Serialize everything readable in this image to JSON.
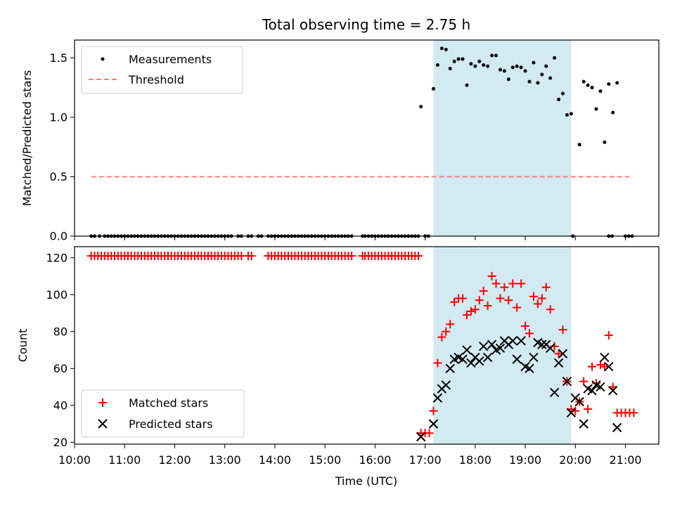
{
  "chart_data": [
    {
      "type": "scatter",
      "title": "Total observing time = 2.75 h",
      "ylabel": "Matched/Predicted stars",
      "xlabel": "",
      "xlim": [
        "10:00",
        "21:40"
      ],
      "ylim": [
        0,
        1.65
      ],
      "yticks": [
        "0.0",
        "0.5",
        "1.0",
        "1.5"
      ],
      "grid": false,
      "legend": "top-left",
      "shaded_interval": {
        "start": "17:10",
        "end": "19:55",
        "color": "#add8e6"
      },
      "series": [
        {
          "name": "Measurements",
          "color": "#000000",
          "marker": "dot",
          "x_zero": [
            "10:20",
            "10:24",
            "10:30",
            "10:36",
            "10:40",
            "10:44",
            "10:48",
            "10:52",
            "10:56",
            "11:00",
            "11:04",
            "11:08",
            "11:12",
            "11:16",
            "11:20",
            "11:24",
            "11:28",
            "11:32",
            "11:36",
            "11:40",
            "11:44",
            "11:48",
            "11:52",
            "11:56",
            "12:00",
            "12:04",
            "12:08",
            "12:12",
            "12:16",
            "12:20",
            "12:24",
            "12:28",
            "12:32",
            "12:36",
            "12:40",
            "12:44",
            "12:48",
            "12:52",
            "12:56",
            "13:00",
            "13:04",
            "13:08",
            "13:16",
            "13:20",
            "13:28",
            "13:32",
            "13:40",
            "13:44",
            "13:52",
            "13:56",
            "14:00",
            "14:04",
            "14:08",
            "14:12",
            "14:16",
            "14:20",
            "14:24",
            "14:28",
            "14:32",
            "14:36",
            "14:40",
            "14:44",
            "14:48",
            "14:52",
            "14:56",
            "15:00",
            "15:04",
            "15:08",
            "15:12",
            "15:16",
            "15:20",
            "15:24",
            "15:28",
            "15:32",
            "15:45",
            "15:48",
            "15:52",
            "15:56",
            "16:00",
            "16:04",
            "16:08",
            "16:12",
            "16:16",
            "16:20",
            "16:24",
            "16:28",
            "16:32",
            "16:36",
            "16:40",
            "16:44",
            "16:48",
            "16:52",
            "17:00",
            "17:04",
            "19:57",
            "20:40",
            "20:44",
            "21:00",
            "21:04",
            "21:08"
          ],
          "points": [
            [
              "16:55",
              1.09
            ],
            [
              "17:10",
              1.24
            ],
            [
              "17:15",
              1.44
            ],
            [
              "17:20",
              1.58
            ],
            [
              "17:25",
              1.57
            ],
            [
              "17:30",
              1.41
            ],
            [
              "17:35",
              1.47
            ],
            [
              "17:40",
              1.49
            ],
            [
              "17:45",
              1.49
            ],
            [
              "17:50",
              1.27
            ],
            [
              "17:55",
              1.45
            ],
            [
              "18:00",
              1.43
            ],
            [
              "18:05",
              1.47
            ],
            [
              "18:10",
              1.44
            ],
            [
              "18:15",
              1.43
            ],
            [
              "18:20",
              1.52
            ],
            [
              "18:25",
              1.52
            ],
            [
              "18:30",
              1.4
            ],
            [
              "18:35",
              1.39
            ],
            [
              "18:40",
              1.32
            ],
            [
              "18:45",
              1.42
            ],
            [
              "18:50",
              1.43
            ],
            [
              "18:55",
              1.42
            ],
            [
              "19:00",
              1.39
            ],
            [
              "19:05",
              1.3
            ],
            [
              "19:10",
              1.46
            ],
            [
              "19:15",
              1.29
            ],
            [
              "19:20",
              1.36
            ],
            [
              "19:25",
              1.43
            ],
            [
              "19:30",
              1.33
            ],
            [
              "19:35",
              1.5
            ],
            [
              "19:40",
              1.15
            ],
            [
              "19:45",
              1.2
            ],
            [
              "19:50",
              1.02
            ],
            [
              "19:55",
              1.03
            ],
            [
              "20:05",
              0.77
            ],
            [
              "20:10",
              1.3
            ],
            [
              "20:15",
              1.27
            ],
            [
              "20:20",
              1.25
            ],
            [
              "20:25",
              1.07
            ],
            [
              "20:30",
              1.22
            ],
            [
              "20:35",
              0.79
            ],
            [
              "20:40",
              1.28
            ],
            [
              "20:45",
              1.04
            ],
            [
              "20:50",
              1.29
            ]
          ]
        },
        {
          "name": "Threshold",
          "color": "#ff7f7f",
          "style": "dashed",
          "y": 0.5,
          "x": [
            "10:20",
            "21:05"
          ]
        }
      ]
    },
    {
      "type": "scatter",
      "title": "",
      "ylabel": "Count",
      "xlabel": "Time (UTC)",
      "xlim": [
        "10:00",
        "21:40"
      ],
      "ylim": [
        19,
        126
      ],
      "yticks": [
        "20",
        "40",
        "60",
        "80",
        "100",
        "120"
      ],
      "xticks": [
        "10:00",
        "11:00",
        "12:00",
        "13:00",
        "14:00",
        "15:00",
        "16:00",
        "17:00",
        "18:00",
        "19:00",
        "20:00",
        "21:00"
      ],
      "grid": false,
      "legend": "bottom-left",
      "shaded_interval": {
        "start": "17:10",
        "end": "19:55",
        "color": "#add8e6"
      },
      "series": [
        {
          "name": "Matched stars",
          "color": "#ff0000",
          "marker": "plus",
          "flat_value": 121,
          "flat_x": [
            "10:20",
            "10:24",
            "10:28",
            "10:32",
            "10:36",
            "10:40",
            "10:44",
            "10:48",
            "10:52",
            "10:56",
            "11:00",
            "11:04",
            "11:08",
            "11:12",
            "11:16",
            "11:20",
            "11:24",
            "11:28",
            "11:32",
            "11:36",
            "11:40",
            "11:44",
            "11:48",
            "11:52",
            "11:56",
            "12:00",
            "12:04",
            "12:08",
            "12:12",
            "12:16",
            "12:20",
            "12:24",
            "12:28",
            "12:32",
            "12:36",
            "12:40",
            "12:44",
            "12:48",
            "12:52",
            "12:56",
            "13:00",
            "13:04",
            "13:08",
            "13:12",
            "13:16",
            "13:20",
            "13:28",
            "13:32",
            "13:52",
            "13:56",
            "14:00",
            "14:04",
            "14:08",
            "14:12",
            "14:16",
            "14:20",
            "14:24",
            "14:28",
            "14:32",
            "14:36",
            "14:40",
            "14:44",
            "14:48",
            "14:52",
            "14:56",
            "15:00",
            "15:04",
            "15:08",
            "15:12",
            "15:16",
            "15:20",
            "15:24",
            "15:28",
            "15:32",
            "15:45",
            "15:48",
            "15:52",
            "15:56",
            "16:00",
            "16:04",
            "16:08",
            "16:12",
            "16:16",
            "16:20",
            "16:24",
            "16:28",
            "16:32",
            "16:36",
            "16:40",
            "16:44",
            "16:48",
            "16:52"
          ],
          "points": [
            [
              "16:55",
              25
            ],
            [
              "17:00",
              25
            ],
            [
              "17:05",
              25
            ],
            [
              "17:10",
              37
            ],
            [
              "17:15",
              63
            ],
            [
              "17:20",
              77
            ],
            [
              "17:25",
              80
            ],
            [
              "17:30",
              84
            ],
            [
              "17:35",
              96
            ],
            [
              "17:40",
              98
            ],
            [
              "17:45",
              98
            ],
            [
              "17:50",
              89
            ],
            [
              "17:55",
              91
            ],
            [
              "18:00",
              92
            ],
            [
              "18:05",
              97
            ],
            [
              "18:10",
              102
            ],
            [
              "18:15",
              94
            ],
            [
              "18:20",
              110
            ],
            [
              "18:25",
              106
            ],
            [
              "18:30",
              98
            ],
            [
              "18:35",
              104
            ],
            [
              "18:40",
              97
            ],
            [
              "18:45",
              106
            ],
            [
              "18:50",
              93
            ],
            [
              "18:55",
              106
            ],
            [
              "19:00",
              83
            ],
            [
              "19:05",
              79
            ],
            [
              "19:10",
              99
            ],
            [
              "19:15",
              95
            ],
            [
              "19:20",
              98
            ],
            [
              "19:25",
              104
            ],
            [
              "19:30",
              92
            ],
            [
              "19:35",
              72
            ],
            [
              "19:40",
              68
            ],
            [
              "19:45",
              81
            ],
            [
              "19:50",
              53
            ],
            [
              "19:55",
              38
            ],
            [
              "20:00",
              37
            ],
            [
              "20:05",
              42
            ],
            [
              "20:10",
              53
            ],
            [
              "20:15",
              38
            ],
            [
              "20:20",
              61
            ],
            [
              "20:25",
              52
            ],
            [
              "20:30",
              62
            ],
            [
              "20:35",
              61
            ],
            [
              "20:40",
              78
            ],
            [
              "20:45",
              50
            ],
            [
              "20:50",
              36
            ],
            [
              "20:55",
              36
            ],
            [
              "21:00",
              36
            ],
            [
              "21:05",
              36
            ],
            [
              "21:10",
              36
            ]
          ]
        },
        {
          "name": "Predicted stars",
          "color": "#000000",
          "marker": "x",
          "points": [
            [
              "16:55",
              23
            ],
            [
              "17:10",
              30
            ],
            [
              "17:15",
              44
            ],
            [
              "17:20",
              49
            ],
            [
              "17:25",
              51
            ],
            [
              "17:30",
              60
            ],
            [
              "17:35",
              65
            ],
            [
              "17:40",
              66
            ],
            [
              "17:45",
              65
            ],
            [
              "17:50",
              70
            ],
            [
              "17:55",
              63
            ],
            [
              "18:00",
              66
            ],
            [
              "18:05",
              64
            ],
            [
              "18:10",
              72
            ],
            [
              "18:15",
              66
            ],
            [
              "18:20",
              73
            ],
            [
              "18:25",
              70
            ],
            [
              "18:30",
              71
            ],
            [
              "18:35",
              75
            ],
            [
              "18:40",
              73
            ],
            [
              "18:45",
              75
            ],
            [
              "18:50",
              65
            ],
            [
              "18:55",
              75
            ],
            [
              "19:00",
              61
            ],
            [
              "19:05",
              60
            ],
            [
              "19:10",
              66
            ],
            [
              "19:15",
              74
            ],
            [
              "19:20",
              73
            ],
            [
              "19:25",
              73
            ],
            [
              "19:30",
              71
            ],
            [
              "19:35",
              47
            ],
            [
              "19:40",
              63
            ],
            [
              "19:45",
              68
            ],
            [
              "19:50",
              53
            ],
            [
              "19:55",
              36
            ],
            [
              "20:00",
              44
            ],
            [
              "20:05",
              42
            ],
            [
              "20:10",
              30
            ],
            [
              "20:15",
              49
            ],
            [
              "20:20",
              48
            ],
            [
              "20:25",
              51
            ],
            [
              "20:30",
              50
            ],
            [
              "20:35",
              66
            ],
            [
              "20:40",
              61
            ],
            [
              "20:45",
              48
            ],
            [
              "20:50",
              28
            ]
          ]
        }
      ]
    }
  ]
}
